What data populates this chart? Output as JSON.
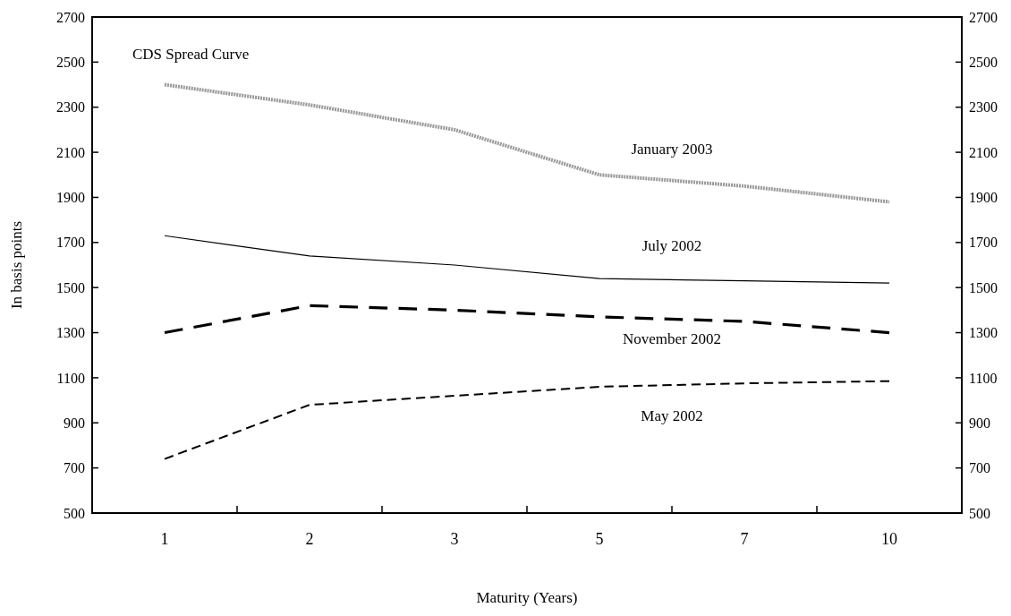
{
  "chart_data": {
    "type": "line",
    "title": "CDS Spread Curve",
    "xlabel": "Maturity (Years)",
    "ylabel": "In basis points",
    "categories": [
      "1",
      "2",
      "3",
      "5",
      "7",
      "10"
    ],
    "series": [
      {
        "name": "January 2003",
        "color": "#999999",
        "line_style": "dotted",
        "values": [
          2400,
          2310,
          2200,
          2000,
          1950,
          1880
        ]
      },
      {
        "name": "July 2002",
        "color": "#000000",
        "line_style": "solid",
        "values": [
          1730,
          1640,
          1600,
          1540,
          1530,
          1520
        ]
      },
      {
        "name": "November 2002",
        "color": "#000000",
        "line_style": "dashed",
        "values": [
          1300,
          1420,
          1400,
          1370,
          1350,
          1300
        ]
      },
      {
        "name": "May 2002",
        "color": "#000000",
        "line_style": "dashed",
        "values": [
          740,
          980,
          1020,
          1060,
          1075,
          1085
        ]
      }
    ],
    "ylim": [
      500,
      2700
    ],
    "yticks": [
      500,
      700,
      900,
      1100,
      1300,
      1500,
      1700,
      1900,
      2100,
      2300,
      2500,
      2700
    ],
    "y2lim": [
      500,
      2700
    ],
    "y2ticks": [
      500,
      700,
      900,
      1100,
      1300,
      1500,
      1700,
      1900,
      2100,
      2300,
      2500,
      2700
    ],
    "grid": false,
    "marker": "none"
  }
}
